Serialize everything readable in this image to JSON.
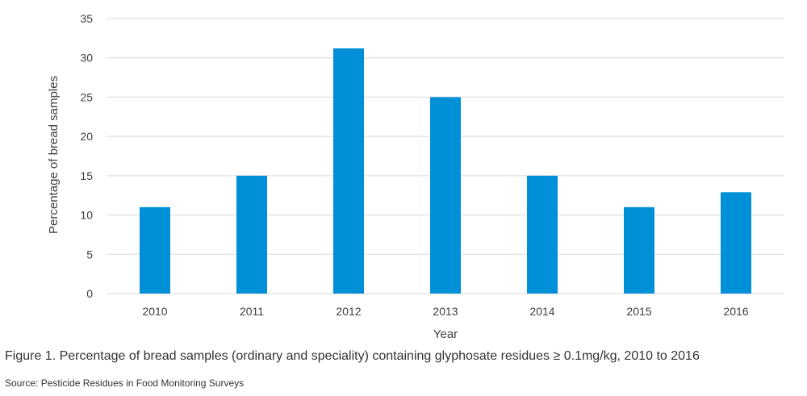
{
  "chart_data": {
    "type": "bar",
    "categories": [
      "2010",
      "2011",
      "2012",
      "2013",
      "2014",
      "2015",
      "2016"
    ],
    "values": [
      11,
      15,
      31.2,
      25,
      15,
      11,
      12.9
    ],
    "xlabel": "Year",
    "ylabel": "Percentage of bread samples",
    "ylim": [
      0,
      35
    ],
    "yticks": [
      0,
      5,
      10,
      15,
      20,
      25,
      30,
      35
    ],
    "grid": true,
    "bar_color": "#0090d8",
    "grid_color": "#d9d9d9"
  },
  "caption": "Figure 1. Percentage of bread samples (ordinary and speciality) containing glyphosate residues ≥ 0.1mg/kg, 2010 to 2016",
  "source": "Source: Pesticide Residues in Food Monitoring Surveys"
}
